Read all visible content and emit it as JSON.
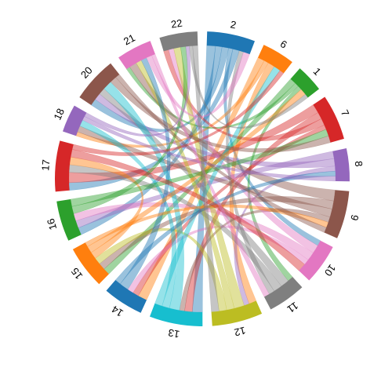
{
  "chart_data": {
    "type": "chord",
    "categories": [
      "2",
      "6",
      "1",
      "7",
      "8",
      "9",
      "10",
      "11",
      "12",
      "13",
      "14",
      "15",
      "16",
      "17",
      "18",
      "20",
      "21",
      "22"
    ],
    "values": [
      19,
      13,
      11,
      18,
      13,
      19,
      16,
      15,
      20,
      21,
      16,
      17,
      16,
      20,
      11,
      18,
      14,
      15
    ],
    "colors": [
      "#1f77b4",
      "#ff7f0e",
      "#2ca02c",
      "#d62728",
      "#9467bd",
      "#8c564b",
      "#e377c2",
      "#7f7f7f",
      "#bcbd22",
      "#17becf",
      "#1f77b4",
      "#ff7f0e",
      "#2ca02c",
      "#d62728",
      "#9467bd",
      "#8c564b",
      "#e377c2",
      "#7f7f7f"
    ],
    "links": [
      [
        0,
        9,
        4
      ],
      [
        0,
        12,
        3
      ],
      [
        0,
        15,
        3
      ],
      [
        0,
        6,
        2
      ],
      [
        0,
        13,
        3
      ],
      [
        1,
        10,
        3
      ],
      [
        1,
        14,
        2
      ],
      [
        1,
        8,
        3
      ],
      [
        2,
        11,
        3
      ],
      [
        2,
        16,
        2
      ],
      [
        2,
        7,
        2
      ],
      [
        3,
        13,
        4
      ],
      [
        3,
        9,
        3
      ],
      [
        3,
        17,
        3
      ],
      [
        3,
        10,
        2
      ],
      [
        4,
        12,
        3
      ],
      [
        4,
        15,
        3
      ],
      [
        4,
        8,
        2
      ],
      [
        5,
        16,
        4
      ],
      [
        5,
        11,
        3
      ],
      [
        5,
        14,
        3
      ],
      [
        5,
        9,
        2
      ],
      [
        6,
        17,
        3
      ],
      [
        6,
        12,
        3
      ],
      [
        6,
        10,
        2
      ],
      [
        7,
        15,
        3
      ],
      [
        7,
        13,
        3
      ],
      [
        7,
        0,
        2
      ],
      [
        8,
        17,
        4
      ],
      [
        8,
        16,
        3
      ],
      [
        8,
        11,
        3
      ],
      [
        9,
        15,
        4
      ],
      [
        9,
        14,
        3
      ],
      [
        9,
        1,
        3
      ],
      [
        10,
        16,
        3
      ],
      [
        10,
        4,
        2
      ],
      [
        11,
        13,
        3
      ],
      [
        11,
        2,
        3
      ],
      [
        11,
        5,
        2
      ],
      [
        12,
        17,
        3
      ],
      [
        12,
        3,
        3
      ],
      [
        13,
        6,
        3
      ],
      [
        13,
        1,
        2
      ],
      [
        14,
        4,
        2
      ],
      [
        14,
        17,
        2
      ],
      [
        15,
        3,
        3
      ],
      [
        15,
        5,
        2
      ],
      [
        16,
        0,
        3
      ],
      [
        16,
        7,
        2
      ],
      [
        17,
        2,
        2
      ],
      [
        17,
        8,
        3
      ]
    ]
  }
}
